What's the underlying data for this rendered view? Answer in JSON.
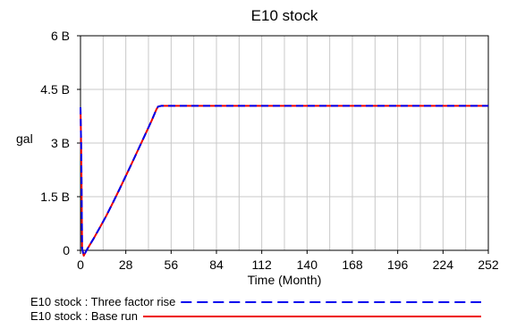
{
  "chart_data": {
    "type": "line",
    "title": "E10 stock",
    "xlabel": "Time (Month)",
    "ylabel": "gal",
    "xlim": [
      0,
      252
    ],
    "ylim": [
      0,
      6000000000
    ],
    "x_ticks": [
      0,
      28,
      56,
      84,
      112,
      140,
      168,
      196,
      224,
      252
    ],
    "x_tick_labels": [
      "0",
      "28",
      "56",
      "84",
      "112",
      "140",
      "168",
      "196",
      "224",
      "252"
    ],
    "y_ticks": [
      0,
      1500000000,
      3000000000,
      4500000000,
      6000000000
    ],
    "y_tick_labels": [
      "0",
      "1.5 B",
      "3 B",
      "4.5 B",
      "6 B"
    ],
    "grid": true,
    "x_grid_step": 14,
    "legend_position": "bottom",
    "series": [
      {
        "name": "E10 stock : Three factor rise",
        "color": "#0000ee",
        "style": "dashed",
        "x": [
          0,
          0.5,
          1,
          2,
          4,
          8,
          12,
          16,
          20,
          24,
          28,
          32,
          36,
          40,
          44,
          47,
          48,
          50,
          56,
          84,
          112,
          140,
          168,
          196,
          224,
          252
        ],
        "y": [
          4000000000,
          2700000000,
          50000000,
          -150000000,
          20000000,
          320000000,
          640000000,
          970000000,
          1330000000,
          1700000000,
          2080000000,
          2460000000,
          2850000000,
          3240000000,
          3630000000,
          3950000000,
          4020000000,
          4040000000,
          4040000000,
          4040000000,
          4040000000,
          4040000000,
          4040000000,
          4040000000,
          4040000000,
          4040000000
        ]
      },
      {
        "name": "E10 stock : Base run",
        "color": "#ee0000",
        "style": "solid",
        "x": [
          0,
          0.5,
          1,
          2,
          4,
          8,
          12,
          16,
          20,
          24,
          28,
          32,
          36,
          40,
          44,
          47,
          48,
          50,
          56,
          84,
          112,
          140,
          168,
          196,
          224,
          252
        ],
        "y": [
          4000000000,
          2700000000,
          50000000,
          -150000000,
          20000000,
          320000000,
          640000000,
          970000000,
          1330000000,
          1700000000,
          2080000000,
          2460000000,
          2850000000,
          3240000000,
          3630000000,
          3950000000,
          4020000000,
          4040000000,
          4040000000,
          4040000000,
          4040000000,
          4040000000,
          4040000000,
          4040000000,
          4040000000,
          4040000000
        ]
      }
    ]
  }
}
